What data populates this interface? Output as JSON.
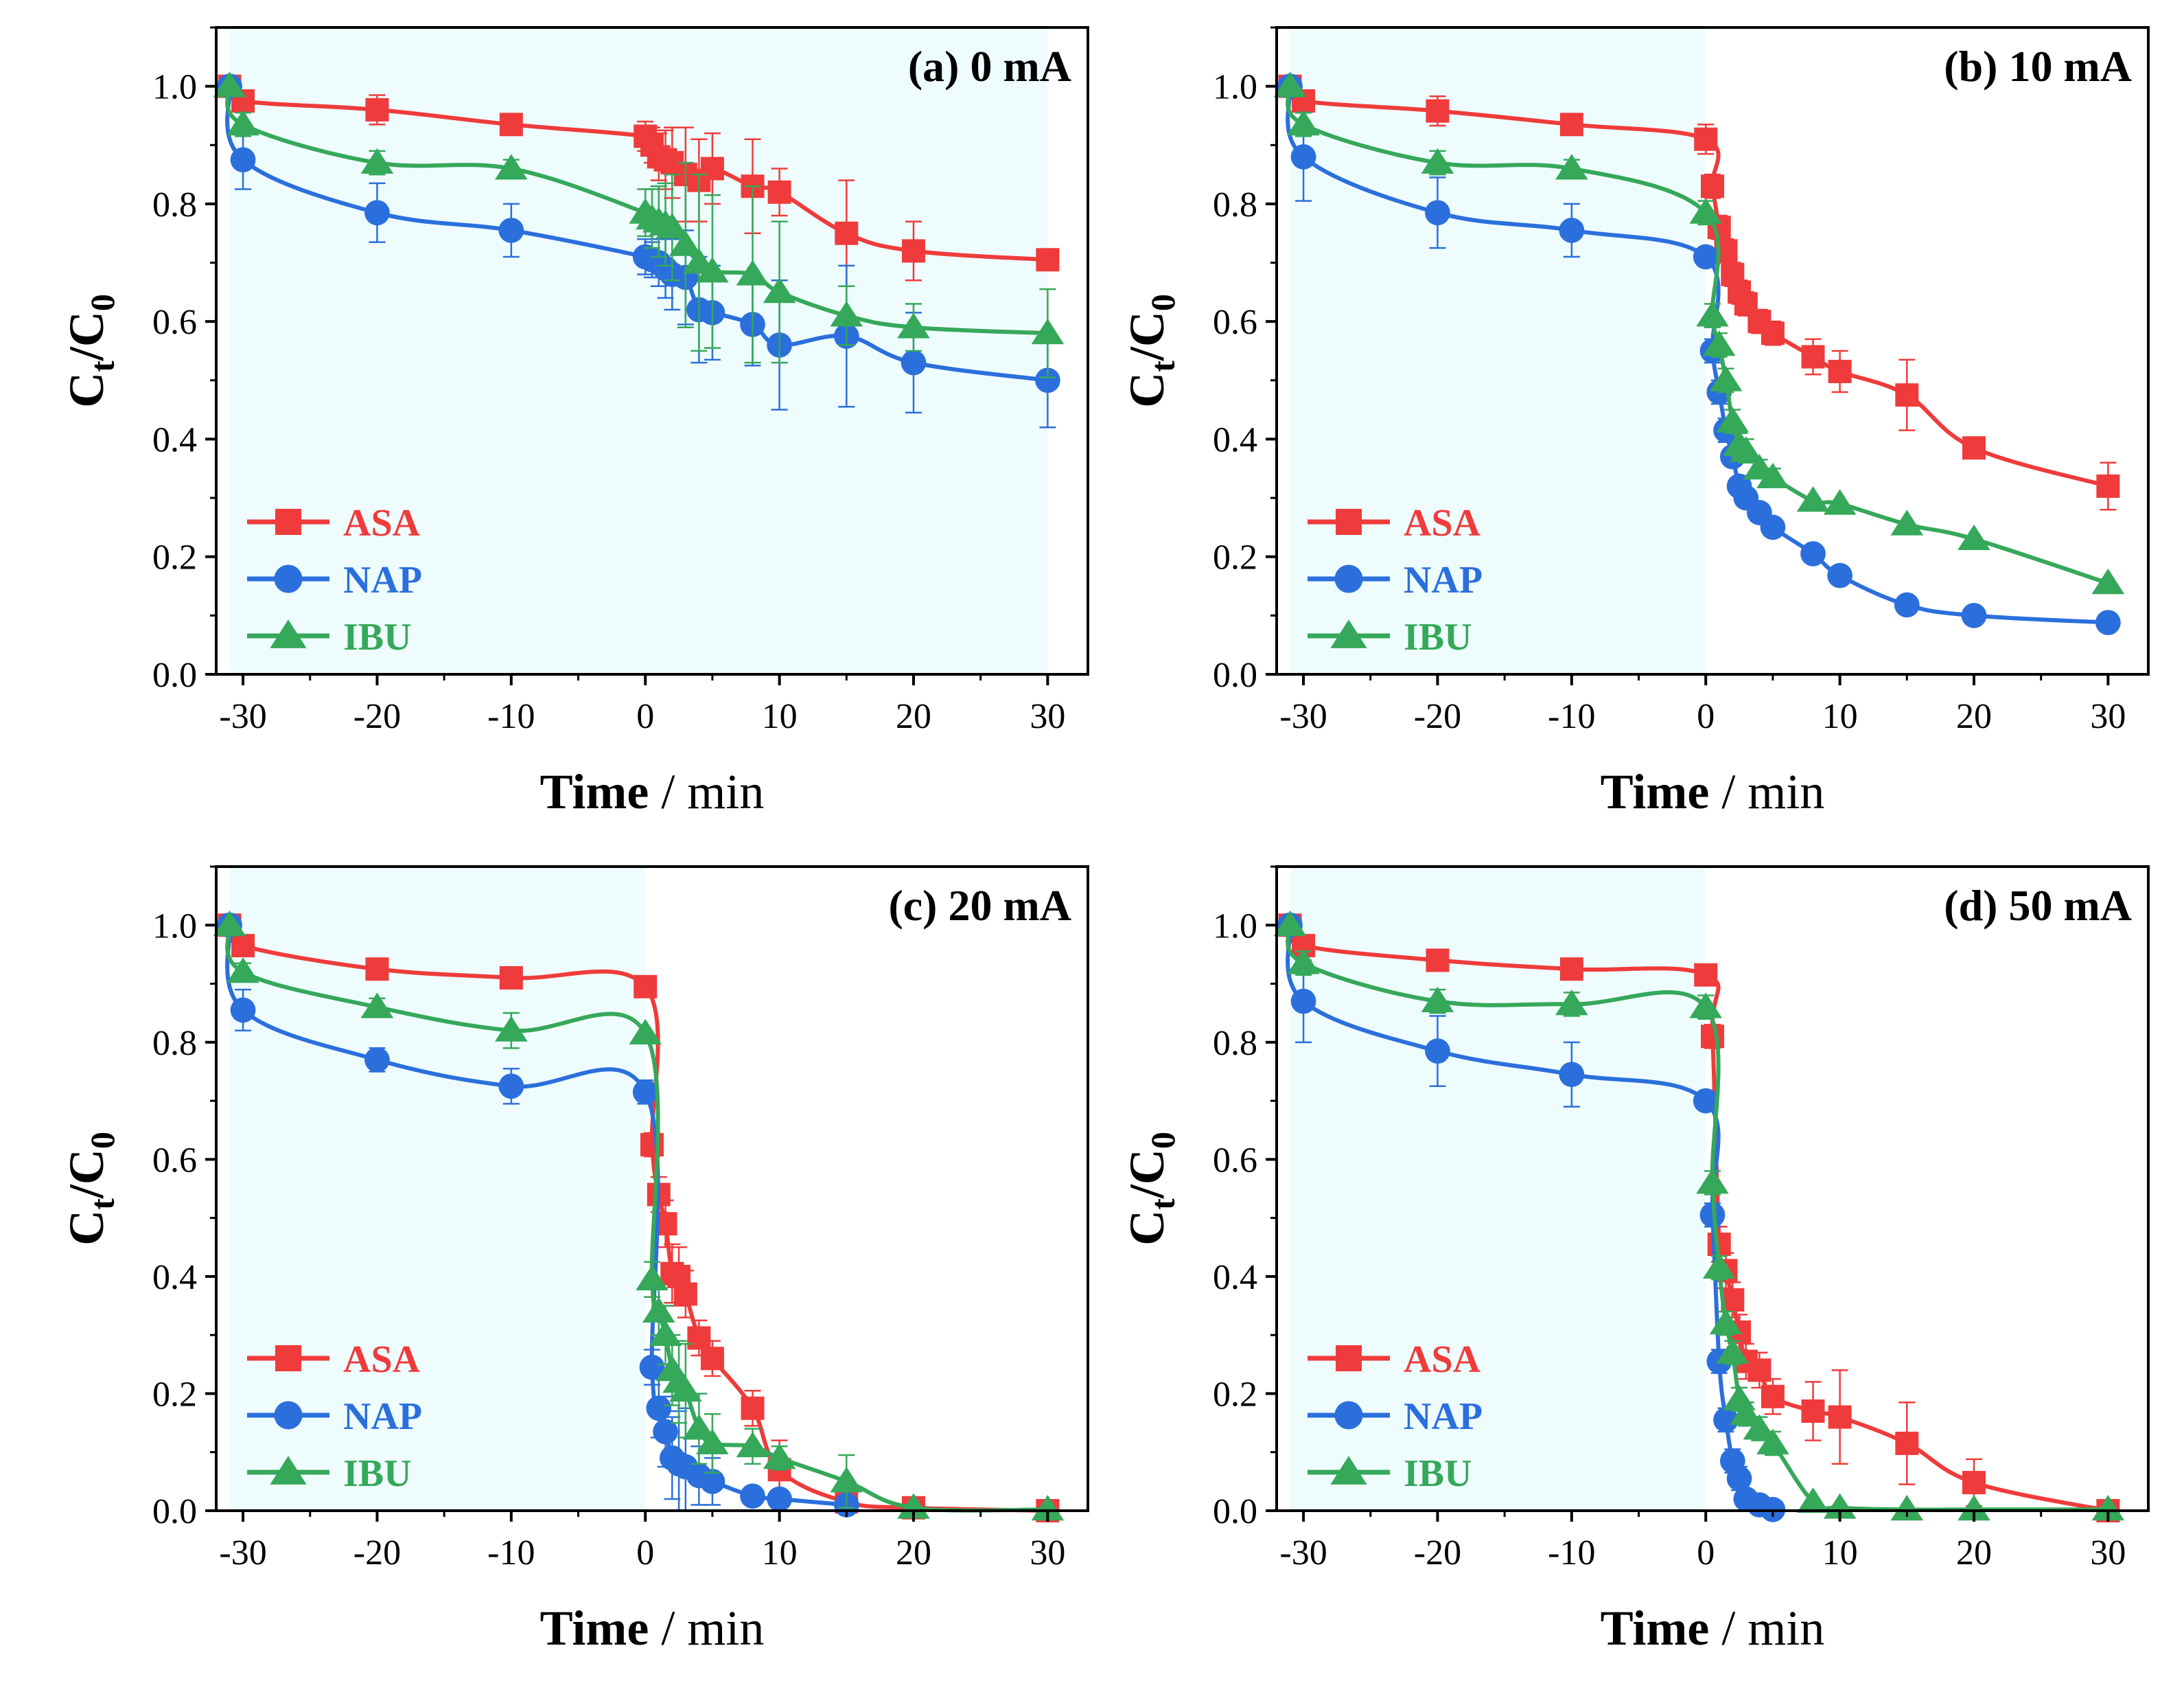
{
  "figure": {
    "xlabel_bold": "Time",
    "xlabel_rest": " / min",
    "ylabel_main": "C",
    "ylabel_sub1": "t",
    "ylabel_sep": "/C",
    "ylabel_sub2": "0"
  },
  "colors": {
    "ASA": "#ef3b3b",
    "NAP": "#2b6fdc",
    "IBU": "#35a85a",
    "shade": "#eefcfd"
  },
  "chart_data": [
    {
      "type": "line",
      "title": "(a) 0 mA",
      "xlim": [
        -32,
        33
      ],
      "ylim": [
        0,
        1.1
      ],
      "xticks": [
        -30,
        -20,
        -10,
        0,
        10,
        20,
        30
      ],
      "yticks": [
        0.0,
        0.2,
        0.4,
        0.6,
        0.8,
        1.0
      ],
      "shade_range": [
        -31,
        30
      ],
      "legend": [
        "ASA",
        "NAP",
        "IBU"
      ],
      "series": [
        {
          "name": "ASA",
          "marker": "square",
          "x": [
            -31,
            -30,
            -20,
            -10,
            0,
            0.5,
            1,
            1.5,
            2,
            3,
            4,
            5,
            8,
            10,
            15,
            20,
            30
          ],
          "y": [
            1.0,
            0.975,
            0.96,
            0.935,
            0.915,
            0.9,
            0.88,
            0.875,
            0.87,
            0.85,
            0.84,
            0.86,
            0.83,
            0.82,
            0.75,
            0.72,
            0.705
          ],
          "err": [
            0.01,
            0.01,
            0.025,
            0.01,
            0.025,
            0.03,
            0.04,
            0.05,
            0.06,
            0.08,
            0.07,
            0.06,
            0.08,
            0.04,
            0.09,
            0.05,
            0.01
          ]
        },
        {
          "name": "NAP",
          "marker": "circle",
          "x": [
            -31,
            -30,
            -20,
            -10,
            0,
            0.5,
            1,
            1.5,
            2,
            3,
            4,
            5,
            8,
            10,
            15,
            20,
            30
          ],
          "y": [
            1.0,
            0.875,
            0.785,
            0.755,
            0.71,
            0.705,
            0.7,
            0.69,
            0.68,
            0.675,
            0.62,
            0.615,
            0.595,
            0.56,
            0.575,
            0.53,
            0.5
          ],
          "err": [
            0.01,
            0.05,
            0.05,
            0.045,
            0.03,
            0.03,
            0.04,
            0.05,
            0.06,
            0.08,
            0.09,
            0.08,
            0.07,
            0.11,
            0.12,
            0.085,
            0.08
          ]
        },
        {
          "name": "IBU",
          "marker": "triangle",
          "x": [
            -31,
            -30,
            -20,
            -10,
            0,
            0.5,
            1,
            1.5,
            2,
            3,
            4,
            5,
            8,
            10,
            15,
            20,
            30
          ],
          "y": [
            1.0,
            0.935,
            0.87,
            0.86,
            0.785,
            0.775,
            0.77,
            0.765,
            0.76,
            0.73,
            0.7,
            0.685,
            0.68,
            0.65,
            0.61,
            0.59,
            0.58
          ],
          "err": [
            0.01,
            0.02,
            0.02,
            0.015,
            0.04,
            0.05,
            0.06,
            0.07,
            0.09,
            0.14,
            0.15,
            0.13,
            0.15,
            0.12,
            0.05,
            0.04,
            0.075
          ]
        }
      ]
    },
    {
      "type": "line",
      "title": "(b) 10 mA",
      "xlim": [
        -32,
        33
      ],
      "ylim": [
        0,
        1.1
      ],
      "xticks": [
        -30,
        -20,
        -10,
        0,
        10,
        20,
        30
      ],
      "yticks": [
        0.0,
        0.2,
        0.4,
        0.6,
        0.8,
        1.0
      ],
      "shade_range": [
        -31,
        0
      ],
      "legend": [
        "ASA",
        "NAP",
        "IBU"
      ],
      "series": [
        {
          "name": "ASA",
          "marker": "square",
          "x": [
            -31,
            -30,
            -20,
            -10,
            0,
            0.5,
            1,
            1.5,
            2,
            2.5,
            3,
            4,
            5,
            8,
            10,
            15,
            20,
            30
          ],
          "y": [
            1.0,
            0.975,
            0.958,
            0.935,
            0.91,
            0.83,
            0.76,
            0.72,
            0.68,
            0.65,
            0.63,
            0.6,
            0.58,
            0.54,
            0.515,
            0.475,
            0.385,
            0.32
          ],
          "err": [
            0.01,
            0.01,
            0.025,
            0.01,
            0.025,
            0.02,
            0.02,
            0.02,
            0.02,
            0.02,
            0.02,
            0.02,
            0.02,
            0.03,
            0.035,
            0.06,
            0.015,
            0.04
          ]
        },
        {
          "name": "NAP",
          "marker": "circle",
          "x": [
            -31,
            -30,
            -20,
            -10,
            0,
            0.5,
            1,
            1.5,
            2,
            2.5,
            3,
            4,
            5,
            8,
            10,
            15,
            20,
            30
          ],
          "y": [
            1.0,
            0.88,
            0.785,
            0.755,
            0.71,
            0.55,
            0.48,
            0.415,
            0.37,
            0.32,
            0.3,
            0.275,
            0.25,
            0.205,
            0.168,
            0.118,
            0.1,
            0.088
          ],
          "err": [
            0.01,
            0.075,
            0.06,
            0.045,
            0.01,
            0.02,
            0.02,
            0.02,
            0.015,
            0.015,
            0.01,
            0.01,
            0.01,
            0.01,
            0.01,
            0.01,
            0.01,
            0.01
          ]
        },
        {
          "name": "IBU",
          "marker": "triangle",
          "x": [
            -31,
            -30,
            -20,
            -10,
            0,
            0.5,
            1,
            1.5,
            2,
            2.5,
            3,
            4,
            5,
            8,
            10,
            15,
            20,
            30
          ],
          "y": [
            1.0,
            0.935,
            0.87,
            0.86,
            0.785,
            0.61,
            0.56,
            0.5,
            0.43,
            0.39,
            0.38,
            0.35,
            0.335,
            0.295,
            0.29,
            0.255,
            0.23,
            0.155
          ],
          "err": [
            0.01,
            0.02,
            0.02,
            0.015,
            0.02,
            0.02,
            0.02,
            0.02,
            0.02,
            0.02,
            0.02,
            0.015,
            0.015,
            0.01,
            0.01,
            0.01,
            0.01,
            0.01
          ]
        }
      ]
    },
    {
      "type": "line",
      "title": "(c) 20 mA",
      "xlim": [
        -32,
        33
      ],
      "ylim": [
        0,
        1.1
      ],
      "xticks": [
        -30,
        -20,
        -10,
        0,
        10,
        20,
        30
      ],
      "yticks": [
        0.0,
        0.2,
        0.4,
        0.6,
        0.8,
        1.0
      ],
      "shade_range": [
        -31,
        0
      ],
      "legend": [
        "ASA",
        "NAP",
        "IBU"
      ],
      "series": [
        {
          "name": "ASA",
          "marker": "square",
          "x": [
            -31,
            -30,
            -20,
            -10,
            0,
            0.5,
            1,
            1.5,
            2,
            2.5,
            3,
            4,
            5,
            8,
            10,
            15,
            20,
            30
          ],
          "y": [
            1.0,
            0.965,
            0.925,
            0.91,
            0.895,
            0.625,
            0.54,
            0.49,
            0.405,
            0.4,
            0.37,
            0.295,
            0.26,
            0.175,
            0.07,
            0.015,
            0.005,
            0.0
          ],
          "err": [
            0.01,
            0.01,
            0.01,
            0.01,
            0.01,
            0.02,
            0.03,
            0.04,
            0.05,
            0.05,
            0.04,
            0.03,
            0.03,
            0.03,
            0.05,
            0.01,
            0.005,
            0.005
          ]
        },
        {
          "name": "NAP",
          "marker": "circle",
          "x": [
            -31,
            -30,
            -20,
            -10,
            0,
            0.5,
            1,
            1.5,
            2,
            2.5,
            3,
            4,
            5,
            8,
            10,
            15
          ],
          "y": [
            1.0,
            0.855,
            0.77,
            0.725,
            0.715,
            0.245,
            0.175,
            0.135,
            0.09,
            0.08,
            0.075,
            0.06,
            0.05,
            0.025,
            0.02,
            0.01
          ],
          "err": [
            0.01,
            0.035,
            0.02,
            0.03,
            0.02,
            0.03,
            0.05,
            0.06,
            0.07,
            0.09,
            0.1,
            0.05,
            0.04,
            0.01,
            0.01,
            0.01
          ]
        },
        {
          "name": "IBU",
          "marker": "triangle",
          "x": [
            -31,
            -30,
            -20,
            -10,
            0,
            0.5,
            1,
            1.5,
            2,
            2.5,
            3,
            4,
            5,
            8,
            10,
            15,
            20,
            30
          ],
          "y": [
            1.0,
            0.92,
            0.86,
            0.82,
            0.815,
            0.395,
            0.34,
            0.3,
            0.24,
            0.22,
            0.205,
            0.14,
            0.115,
            0.11,
            0.09,
            0.05,
            0.005,
            0.002
          ],
          "err": [
            0.01,
            0.015,
            0.015,
            0.03,
            0.01,
            0.03,
            0.04,
            0.05,
            0.06,
            0.07,
            0.08,
            0.06,
            0.05,
            0.03,
            0.02,
            0.045,
            0.005,
            0.005
          ]
        }
      ]
    },
    {
      "type": "line",
      "title": "(d) 50 mA",
      "xlim": [
        -32,
        33
      ],
      "ylim": [
        0,
        1.1
      ],
      "xticks": [
        -30,
        -20,
        -10,
        0,
        10,
        20,
        30
      ],
      "yticks": [
        0.0,
        0.2,
        0.4,
        0.6,
        0.8,
        1.0
      ],
      "shade_range": [
        -31,
        0
      ],
      "legend": [
        "ASA",
        "NAP",
        "IBU"
      ],
      "series": [
        {
          "name": "ASA",
          "marker": "square",
          "x": [
            -31,
            -30,
            -20,
            -10,
            0,
            0.5,
            1,
            1.5,
            2,
            2.5,
            3,
            4,
            5,
            8,
            10,
            15,
            20,
            30
          ],
          "y": [
            1.0,
            0.965,
            0.94,
            0.925,
            0.915,
            0.81,
            0.455,
            0.41,
            0.36,
            0.305,
            0.255,
            0.24,
            0.195,
            0.17,
            0.16,
            0.115,
            0.048,
            0.0
          ],
          "err": [
            0.01,
            0.01,
            0.01,
            0.01,
            0.01,
            0.02,
            0.03,
            0.03,
            0.03,
            0.03,
            0.03,
            0.03,
            0.03,
            0.05,
            0.08,
            0.07,
            0.04,
            0.005
          ]
        },
        {
          "name": "NAP",
          "marker": "circle",
          "x": [
            -31,
            -30,
            -20,
            -10,
            0,
            0.5,
            1,
            1.5,
            2,
            2.5,
            3,
            4,
            5
          ],
          "y": [
            1.0,
            0.87,
            0.785,
            0.745,
            0.7,
            0.505,
            0.255,
            0.155,
            0.085,
            0.055,
            0.02,
            0.01,
            0.002
          ],
          "err": [
            0.01,
            0.07,
            0.06,
            0.055,
            0.01,
            0.02,
            0.02,
            0.02,
            0.02,
            0.02,
            0.01,
            0.01,
            0.005
          ]
        },
        {
          "name": "IBU",
          "marker": "triangle",
          "x": [
            -31,
            -30,
            -20,
            -10,
            0,
            0.5,
            1,
            1.5,
            2,
            2.5,
            3,
            4,
            5,
            8,
            10,
            15,
            20,
            30
          ],
          "y": [
            1.0,
            0.935,
            0.87,
            0.865,
            0.86,
            0.56,
            0.415,
            0.32,
            0.27,
            0.19,
            0.165,
            0.14,
            0.115,
            0.015,
            0.005,
            0.002,
            0.002,
            0.002
          ],
          "err": [
            0.01,
            0.02,
            0.02,
            0.02,
            0.02,
            0.02,
            0.02,
            0.02,
            0.02,
            0.02,
            0.02,
            0.02,
            0.02,
            0.01,
            0.005,
            0.005,
            0.005,
            0.005
          ]
        }
      ]
    }
  ]
}
